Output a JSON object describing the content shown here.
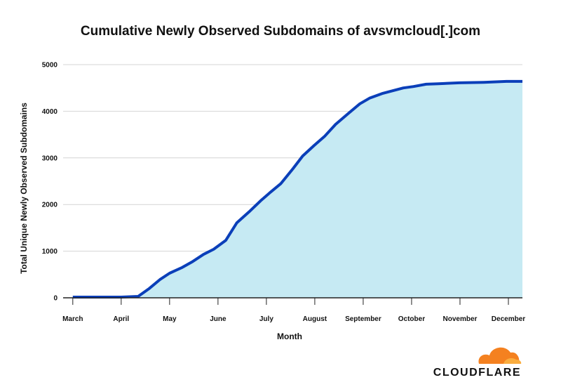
{
  "chart_data": {
    "type": "area",
    "title": "Cumulative Newly Observed Subdomains of avsvmcloud[.]com",
    "x_label": "Month",
    "y_label": "Total Unique Newly Observed Subdomains",
    "x": [
      0,
      1,
      1.35,
      1.58,
      1.8,
      2.0,
      2.26,
      2.48,
      2.7,
      2.91,
      3.16,
      3.39,
      3.64,
      3.88,
      4.09,
      4.3,
      4.55,
      4.75,
      4.99,
      5.2,
      5.43,
      5.7,
      5.93,
      6.13,
      6.39,
      6.61,
      6.83,
      7.04,
      7.3,
      7.55,
      7.99,
      8.49,
      8.96,
      9.29
    ],
    "values": [
      15,
      15,
      30,
      200,
      390,
      527,
      650,
      780,
      930,
      1040,
      1230,
      1610,
      1840,
      2080,
      2270,
      2450,
      2770,
      3040,
      3270,
      3460,
      3720,
      3960,
      4160,
      4280,
      4380,
      4440,
      4500,
      4530,
      4580,
      4590,
      4610,
      4620,
      4640,
      4640
    ],
    "line_color": "#0b3fb9",
    "fill_color": "#c6eaf3",
    "xlim": [
      -0.2,
      9.29
    ],
    "xticks": [
      {
        "value": 0,
        "label": "March"
      },
      {
        "value": 1,
        "label": "April"
      },
      {
        "value": 2,
        "label": "May"
      },
      {
        "value": 3,
        "label": "June"
      },
      {
        "value": 4,
        "label": "July"
      },
      {
        "value": 5,
        "label": "August"
      },
      {
        "value": 6,
        "label": "September"
      },
      {
        "value": 7,
        "label": "October"
      },
      {
        "value": 8,
        "label": "November"
      },
      {
        "value": 9,
        "label": "December"
      }
    ],
    "ylim": [
      0,
      5000
    ],
    "yticks": [
      0,
      1000,
      2000,
      3000,
      4000,
      5000
    ],
    "grid": true,
    "logo": "CLOUDFLARE"
  }
}
